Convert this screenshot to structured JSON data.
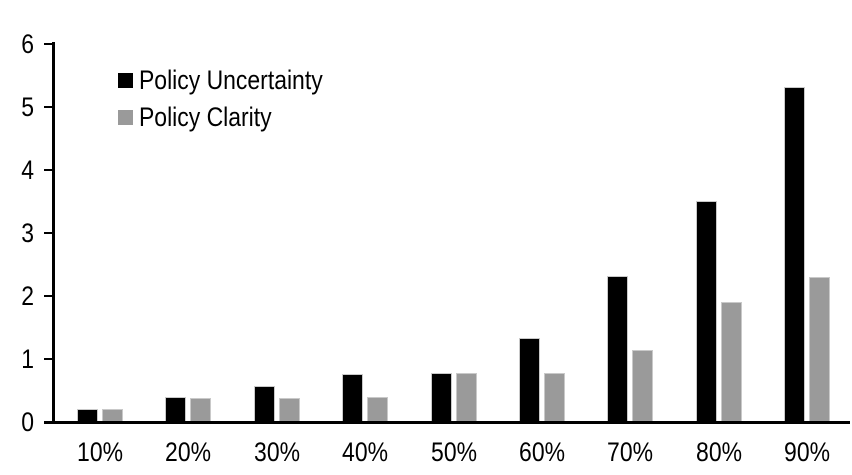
{
  "chart_data": {
    "type": "bar",
    "title": "",
    "xlabel": "",
    "ylabel": "",
    "categories": [
      "10%",
      "20%",
      "30%",
      "40%",
      "50%",
      "60%",
      "70%",
      "80%",
      "90%"
    ],
    "series": [
      {
        "name": "Policy Uncertainty",
        "color": "#000000",
        "values": [
          0.2,
          0.4,
          0.57,
          0.76,
          0.78,
          1.33,
          2.32,
          3.5,
          5.32
        ]
      },
      {
        "name": "Policy Clarity",
        "color": "#9a9a9a",
        "values": [
          0.2,
          0.38,
          0.38,
          0.39,
          0.77,
          0.77,
          1.14,
          1.9,
          2.3
        ]
      }
    ],
    "ylim": [
      0,
      6
    ],
    "yticks": [
      0,
      1,
      2,
      3,
      4,
      5,
      6
    ],
    "grid": false,
    "legend_position": "inside-top-left",
    "bar_outline_color": "#c9c9c9",
    "axis_color": "#000000",
    "background_color": "#ffffff"
  }
}
